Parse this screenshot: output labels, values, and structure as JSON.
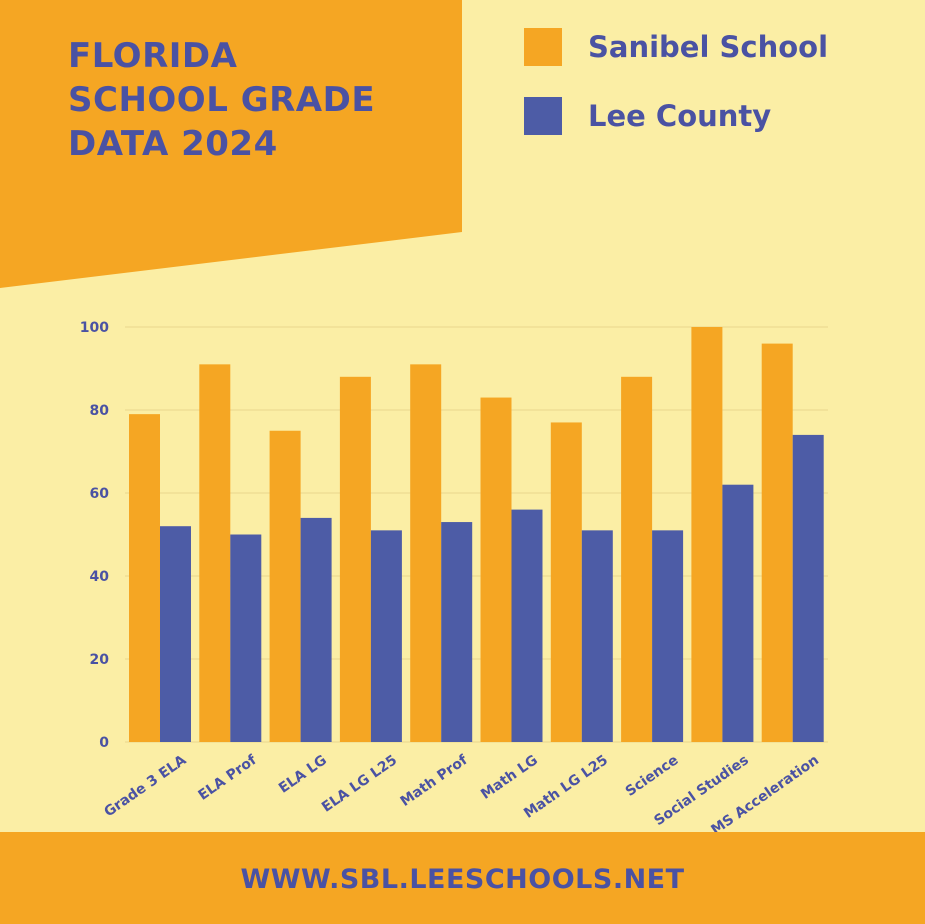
{
  "header": {
    "title_lines": [
      "FLORIDA",
      "SCHOOL GRADE",
      "DATA 2024"
    ]
  },
  "colors": {
    "background": "#fbeea5",
    "accent": "#f5a623",
    "primary_text": "#4a52a3",
    "series_1": "#f5a623",
    "series_2": "#4d5ca6"
  },
  "footer": {
    "url": "WWW.SBL.LEESCHOOLS.NET"
  },
  "chart_data": {
    "type": "bar",
    "title": "",
    "xlabel": "",
    "ylabel": "",
    "ylim": [
      0,
      100
    ],
    "yticks": [
      0,
      20,
      40,
      60,
      80,
      100
    ],
    "grid": true,
    "legend_position": "top-right",
    "categories": [
      "Grade 3 ELA",
      "ELA Prof",
      "ELA LG",
      "ELA LG L25",
      "Math Prof",
      "Math LG",
      "Math LG L25",
      "Science",
      "Social Studies",
      "MS Acceleration"
    ],
    "series": [
      {
        "name": "Sanibel School",
        "color": "#f5a623",
        "values": [
          79,
          91,
          75,
          88,
          91,
          83,
          77,
          88,
          100,
          96
        ]
      },
      {
        "name": "Lee County",
        "color": "#4d5ca6",
        "values": [
          52,
          50,
          54,
          51,
          53,
          56,
          51,
          51,
          62,
          74
        ]
      }
    ]
  }
}
